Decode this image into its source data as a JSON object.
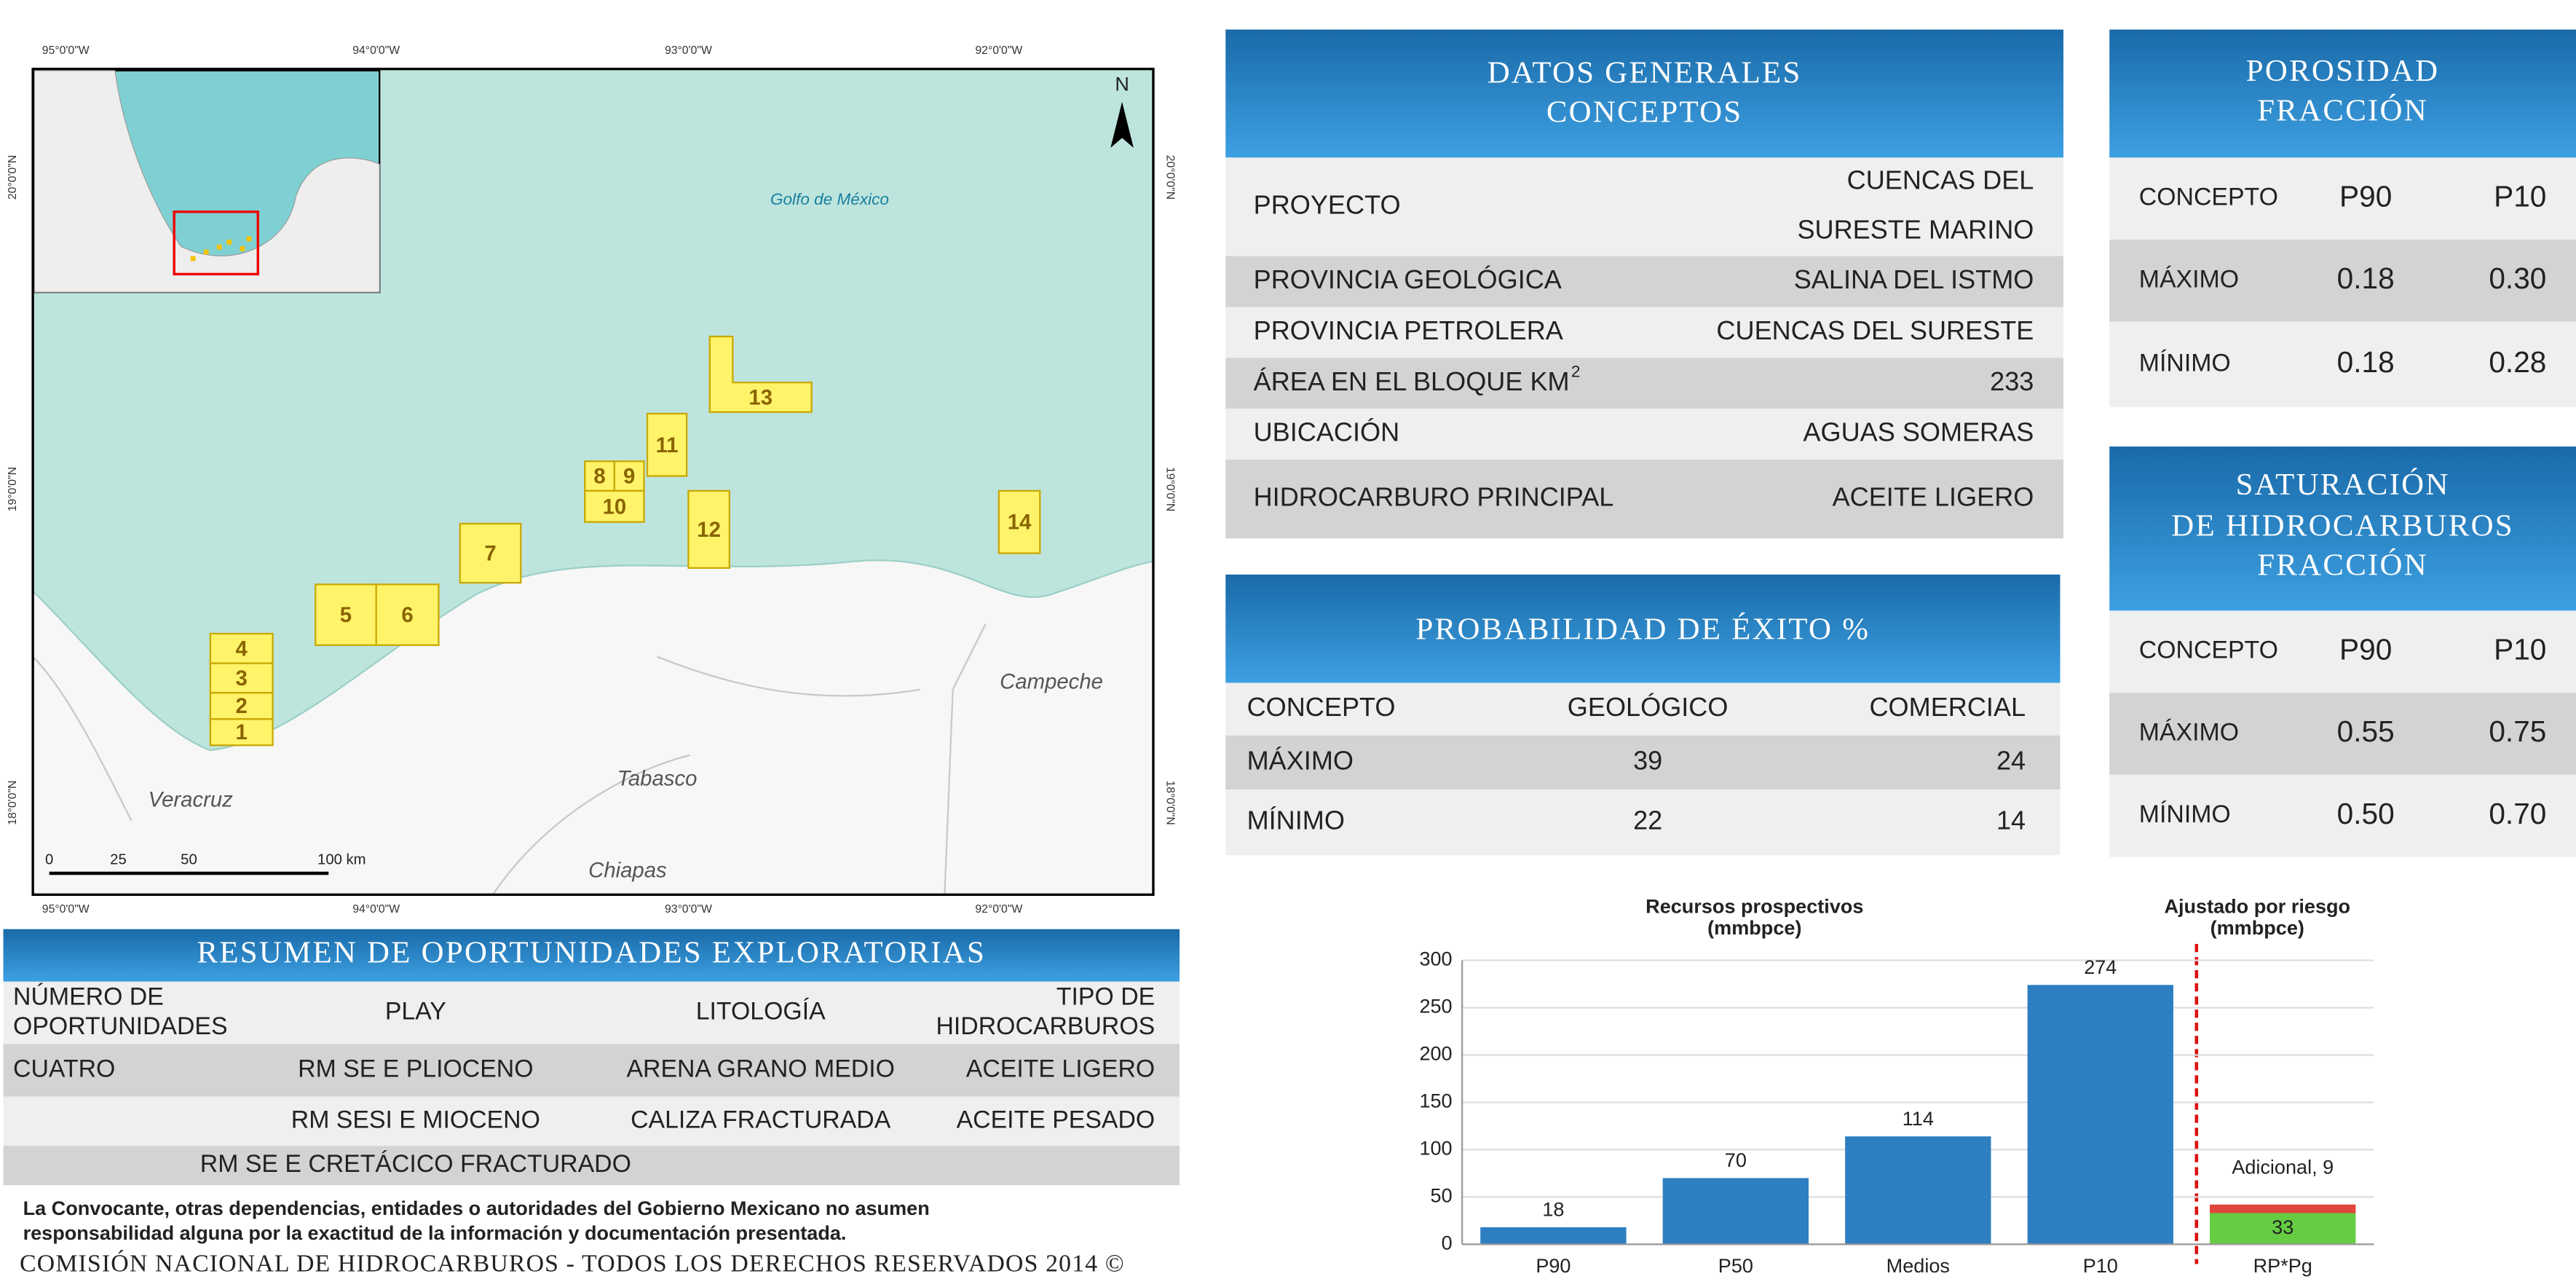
{
  "map": {
    "gulf": "Golfo de México",
    "places": [
      "Campeche",
      "Tabasco",
      "Veracruz",
      "Chiapas"
    ],
    "north": "N",
    "lon_labels": [
      "95°0'0\"W",
      "94°0'0\"W",
      "93°0'0\"W",
      "92°0'0\"W"
    ],
    "lat_labels": [
      "20°0'0\"N",
      "19°0'0\"N",
      "18°0'0\"N"
    ],
    "scale_labels": [
      "0",
      "25",
      "50",
      "100 km"
    ],
    "blocks": [
      "1",
      "2",
      "3",
      "4",
      "5",
      "6",
      "7",
      "8",
      "9",
      "10",
      "11",
      "12",
      "13",
      "14"
    ]
  },
  "datos_generales": {
    "title": [
      "DATOS GENERALES",
      "CONCEPTOS"
    ],
    "superscript": "2",
    "rows": [
      [
        "PROYECTO",
        [
          "CUENCAS DEL",
          "SURESTE MARINO"
        ]
      ],
      [
        "PROVINCIA GEOLÓGICA",
        "SALINA DEL ISTMO"
      ],
      [
        "PROVINCIA PETROLERA",
        "CUENCAS DEL SURESTE"
      ],
      [
        "ÁREA EN EL BLOQUE KM",
        "233"
      ],
      [
        "UBICACIÓN",
        "AGUAS SOMERAS"
      ],
      [
        "HIDROCARBURO PRINCIPAL",
        "ACEITE LIGERO"
      ]
    ]
  },
  "porosidad": {
    "title": [
      "POROSIDAD",
      "FRACCIÓN"
    ],
    "rows": [
      [
        "CONCEPTO",
        "P90",
        "P10"
      ],
      [
        "MÁXIMO",
        "0.18",
        "0.30"
      ],
      [
        "MÍNIMO",
        "0.18",
        "0.28"
      ]
    ]
  },
  "probabilidad": {
    "title": [
      "PROBABILIDAD DE ÉXITO %"
    ],
    "rows": [
      [
        "CONCEPTO",
        "GEOLÓGICO",
        "COMERCIAL"
      ],
      [
        "MÁXIMO",
        "39",
        "24"
      ],
      [
        "MÍNIMO",
        "22",
        "14"
      ]
    ]
  },
  "saturacion": {
    "title": [
      "SATURACIÓN",
      "DE HIDROCARBUROS",
      "FRACCIÓN"
    ],
    "rows": [
      [
        "CONCEPTO",
        "P90",
        "P10"
      ],
      [
        "MÁXIMO",
        "0.55",
        "0.75"
      ],
      [
        "MÍNIMO",
        "0.50",
        "0.70"
      ]
    ]
  },
  "resumen": {
    "title": [
      "RESUMEN DE OPORTUNIDADES EXPLORATORIAS"
    ],
    "rows": [
      [
        [
          "NÚMERO DE",
          "OPORTUNIDADES"
        ],
        "PLAY",
        "LITOLOGÍA",
        [
          "TIPO DE",
          "HIDROCARBUROS"
        ]
      ],
      [
        "CUATRO",
        "RM SE E PLIOCENO",
        "ARENA GRANO MEDIO",
        "ACEITE LIGERO"
      ],
      [
        null,
        "RM SESI E MIOCENO",
        "CALIZA FRACTURADA",
        "ACEITE PESADO"
      ],
      [
        null,
        "RM SE E CRETÁCICO FRACTURADO",
        null,
        null
      ]
    ]
  },
  "footer": {
    "disclaimer": [
      "La Convocante, otras dependencias, entidades o autoridades del Gobierno Mexicano no asumen",
      "responsabilidad alguna por la exactitud de la información y documentación presentada."
    ],
    "copyright": "COMISIÓN NACIONAL DE HIDROCARBUROS - TODOS LOS DERECHOS RESERVADOS 2014 ©"
  },
  "chart_data": {
    "type": "bar",
    "title": [
      "Recursos prospectivos",
      "(mmbpce)"
    ],
    "annotation": [
      "Ajustado por riesgo",
      "(mmbpce)"
    ],
    "categories": [
      "P90",
      "P50",
      "Medios",
      "P10",
      "RP*Pg"
    ],
    "series": [
      {
        "values": [
          18,
          70,
          114,
          274,
          33
        ],
        "colors": [
          "#2e7fc1",
          "#2e7fc1",
          "#2e7fc1",
          "#2e7fc1",
          "#66cc44"
        ]
      },
      {
        "values": [
          null,
          null,
          null,
          null,
          9
        ],
        "value_labels": [
          null,
          null,
          null,
          null,
          "Adicional, 9"
        ],
        "color": "#e0463c"
      }
    ],
    "ylim": [
      0,
      300
    ],
    "yticks": [
      0,
      50,
      100,
      150,
      200,
      250,
      300
    ],
    "grid": true
  }
}
